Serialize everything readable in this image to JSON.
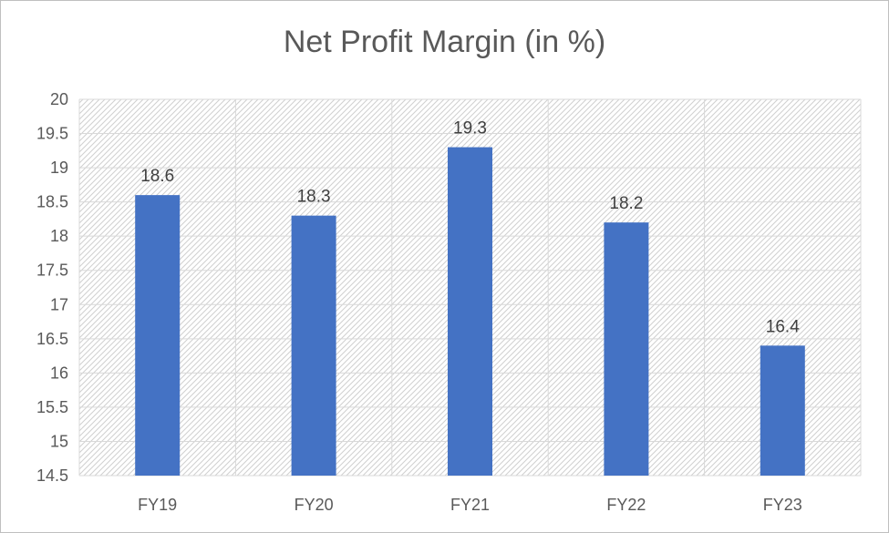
{
  "chart_data": {
    "type": "bar",
    "title": "Net Profit Margin (in %)",
    "categories": [
      "FY19",
      "FY20",
      "FY21",
      "FY22",
      "FY23"
    ],
    "series": [
      {
        "values": [
          18.6,
          18.3,
          19.3,
          18.2,
          16.4
        ]
      }
    ],
    "data_labels": [
      "18.6",
      "18.3",
      "19.3",
      "18.2",
      "16.4"
    ],
    "xlabel": "",
    "ylabel": "",
    "ylim": [
      14.5,
      20
    ],
    "yticks": [
      14.5,
      15,
      15.5,
      16,
      16.5,
      17,
      17.5,
      18,
      18.5,
      19,
      19.5,
      20
    ],
    "ytick_labels": [
      "14.5",
      "15",
      "15.5",
      "16",
      "16.5",
      "17",
      "17.5",
      "18",
      "18.5",
      "19",
      "19.5",
      "20"
    ],
    "grid": true,
    "legend": "none",
    "colors": {
      "bar": "#4472C4",
      "grid": "#d9d9d9",
      "plot_hatch": "#d0d0d0",
      "text": "#595959"
    }
  }
}
